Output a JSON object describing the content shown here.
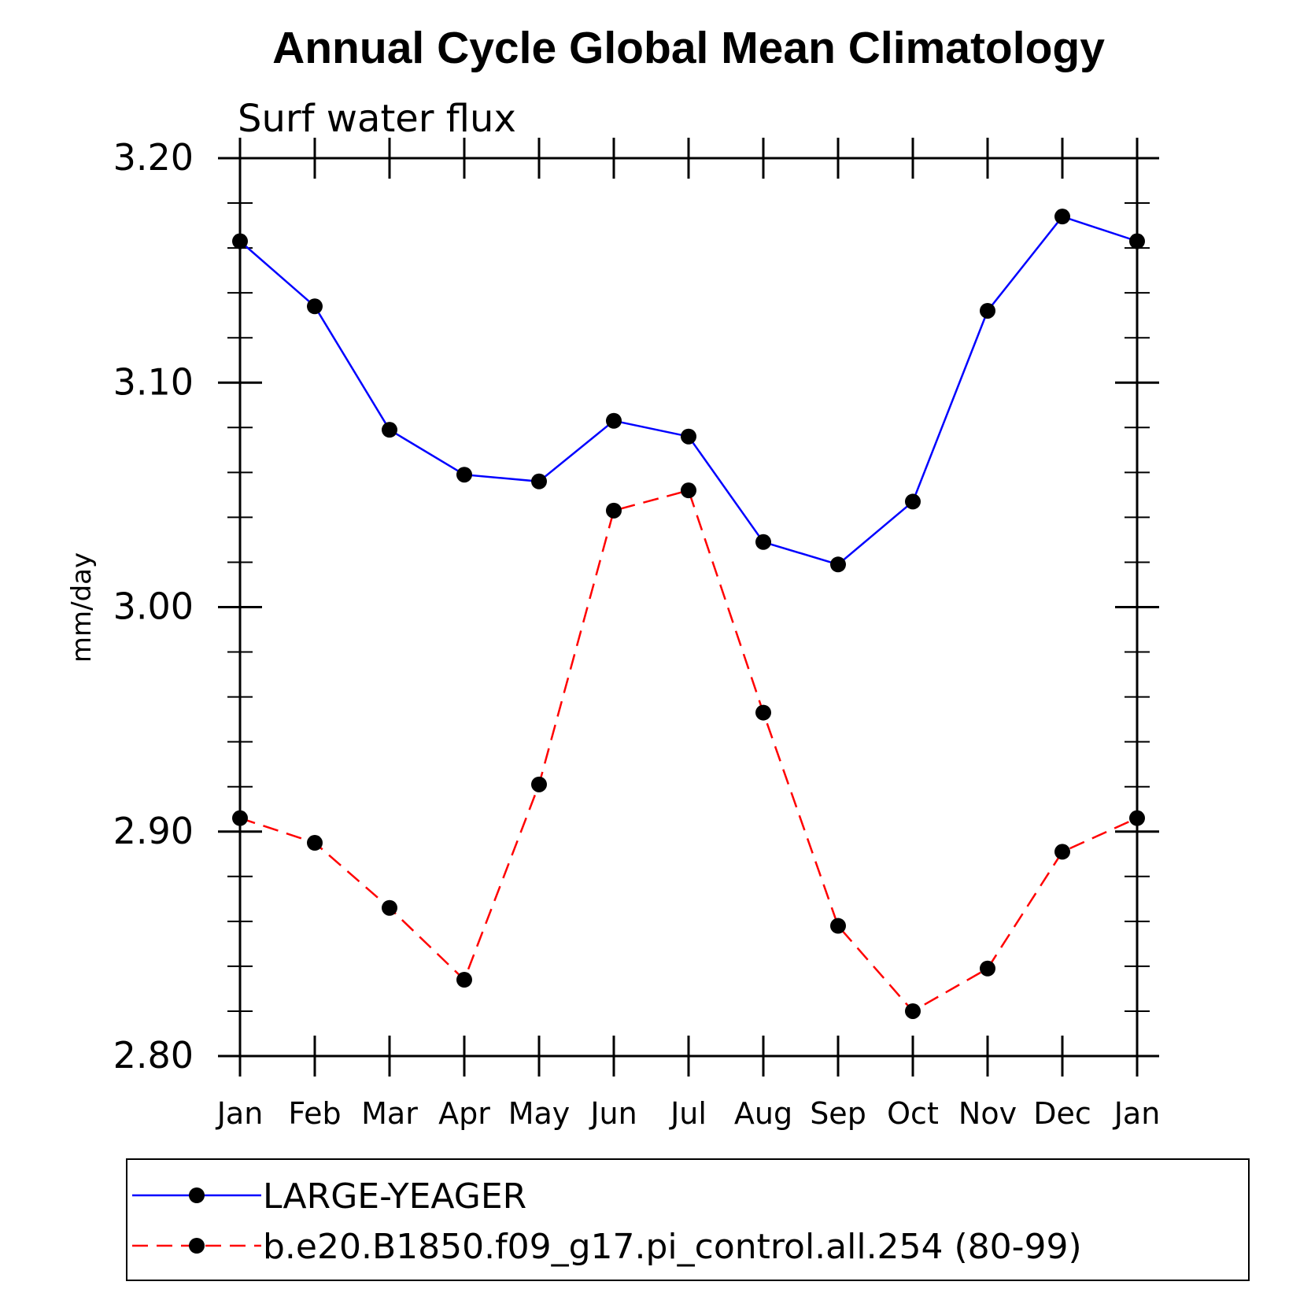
{
  "chart_data": {
    "type": "line",
    "title": "Annual Cycle Global Mean Climatology",
    "subtitle": "Surf water flux",
    "ylabel": "mm/day",
    "xlabel": "",
    "categories": [
      "Jan",
      "Feb",
      "Mar",
      "Apr",
      "May",
      "Jun",
      "Jul",
      "Aug",
      "Sep",
      "Oct",
      "Nov",
      "Dec",
      "Jan"
    ],
    "ylim": [
      2.8,
      3.2
    ],
    "yticks": [
      "2.80",
      "2.90",
      "3.00",
      "3.10",
      "3.20"
    ],
    "series": [
      {
        "name": "LARGE-YEAGER",
        "color": "#0000ff",
        "dash": "solid",
        "values": [
          3.163,
          3.134,
          3.079,
          3.059,
          3.056,
          3.083,
          3.076,
          3.029,
          3.019,
          3.047,
          3.132,
          3.174,
          3.163
        ]
      },
      {
        "name": "b.e20.B1850.f09_g17.pi_control.all.254 (80-99)",
        "color": "#ff0000",
        "dash": "dashed",
        "values": [
          2.906,
          2.895,
          2.866,
          2.834,
          2.921,
          3.043,
          3.052,
          2.953,
          2.858,
          2.82,
          2.839,
          2.891,
          2.906
        ]
      }
    ],
    "grid": false,
    "legend_position": "bottom"
  }
}
